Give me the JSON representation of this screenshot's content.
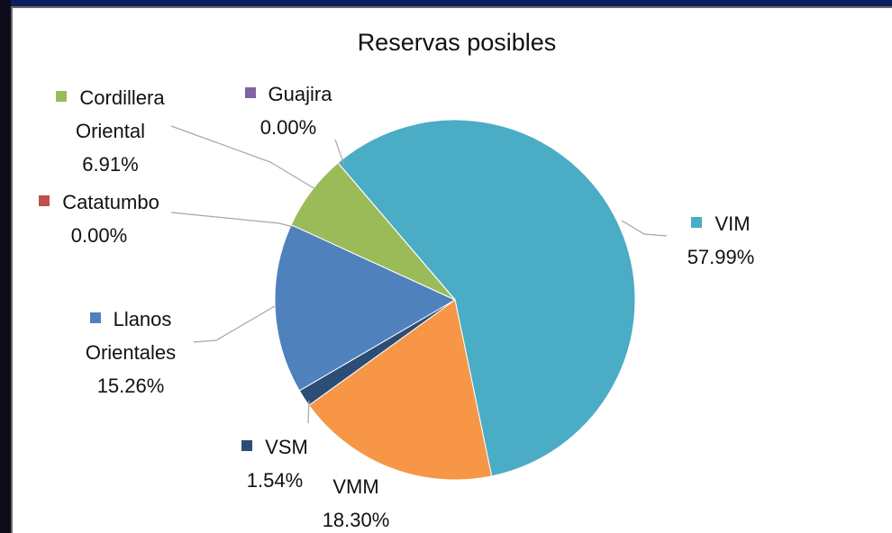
{
  "chart_data": {
    "type": "pie",
    "title": "Reservas posibles",
    "categories": [
      "VIM",
      "VMM",
      "VSM",
      "Llanos Orientales",
      "Catatumbo",
      "Cordillera Oriental",
      "Guajira"
    ],
    "values": [
      57.99,
      18.3,
      1.54,
      15.26,
      0.0,
      6.91,
      0.0
    ],
    "value_labels": [
      "57.99%",
      "18.30%",
      "1.54%",
      "15.26%",
      "0.00%",
      "6.91%",
      "0.00%"
    ],
    "colors": [
      "#4bacc6",
      "#f79646",
      "#2c4d75",
      "#4f81bd",
      "#c0504d",
      "#9bbb59",
      "#8064a2"
    ]
  }
}
